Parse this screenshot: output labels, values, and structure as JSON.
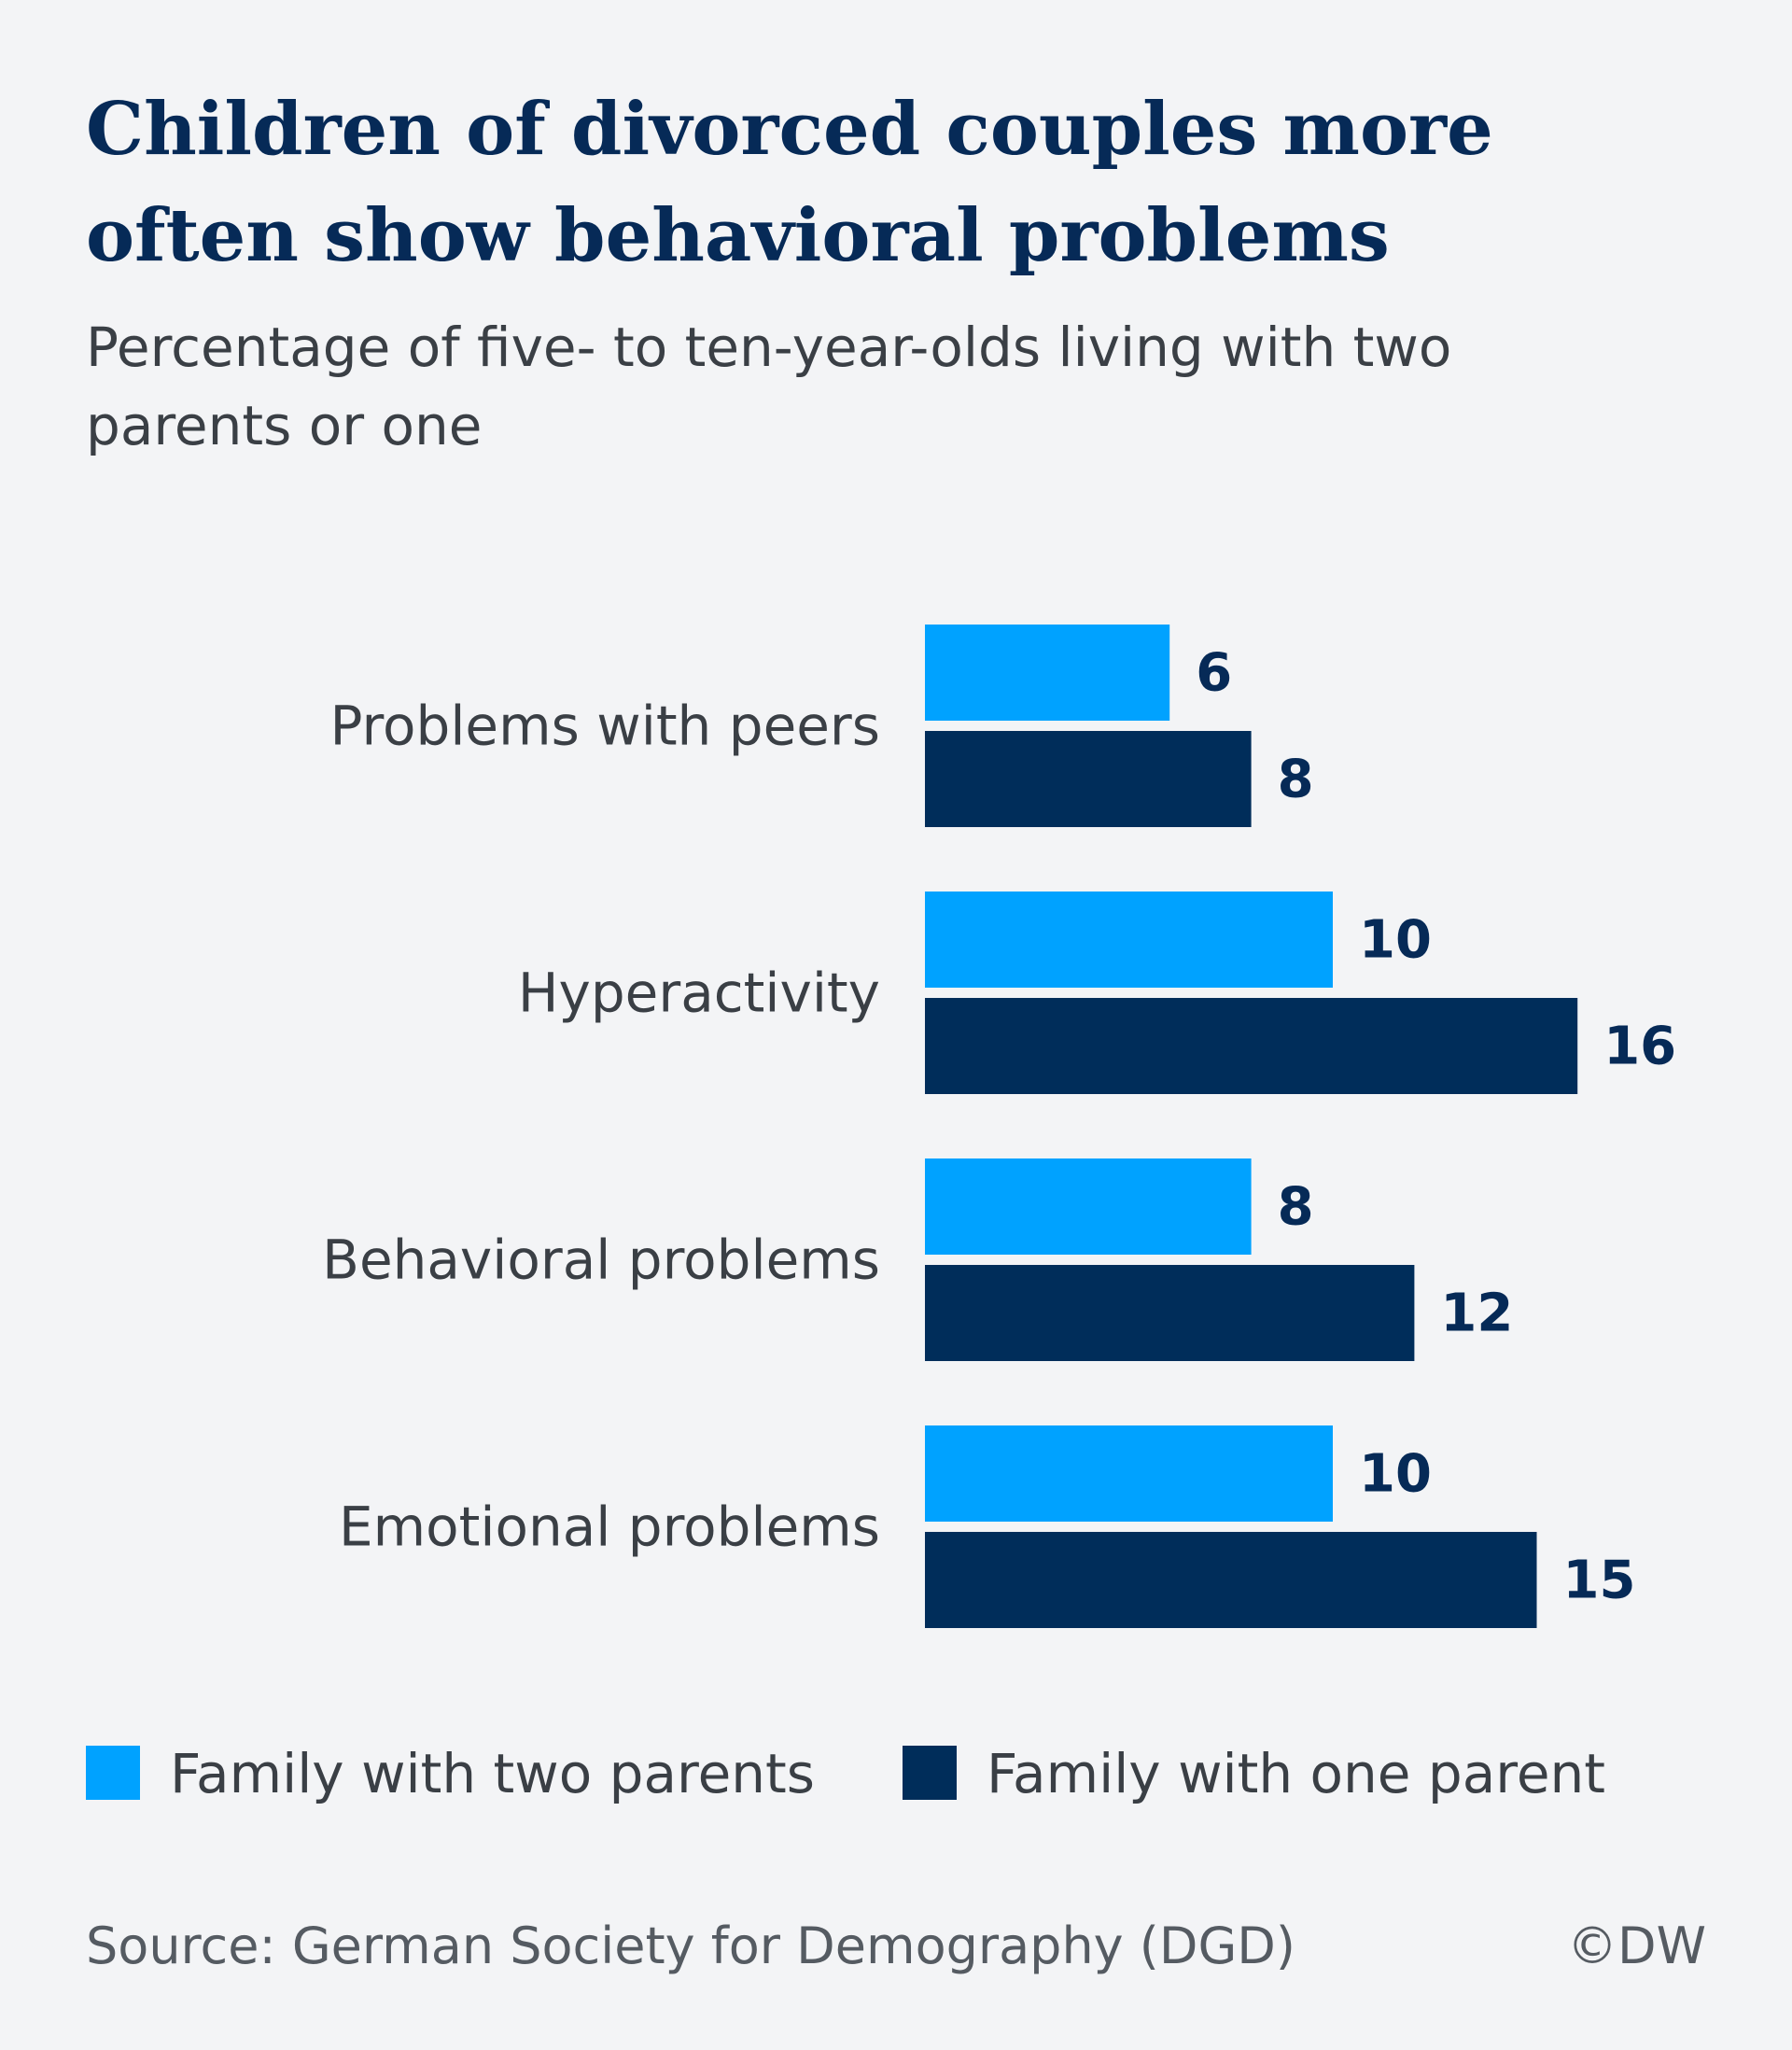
{
  "title": "Children of divorced couples more often show behavioral problems",
  "subtitle": "Percentage of five- to ten-year-olds living with two parents or one",
  "source": "Source: German Society for Demography (DGD)",
  "credit": "©DW",
  "colors": {
    "two_parents": "#00a2ff",
    "one_parent": "#002d5a",
    "label": "#3a3f45",
    "value": "#062a57"
  },
  "chart_data": {
    "type": "bar",
    "orientation": "horizontal",
    "categories": [
      "Problems with peers",
      "Hyperactivity",
      "Behavioral problems",
      "Emotional problems"
    ],
    "series": [
      {
        "name": "Family with two parents",
        "values": [
          6,
          10,
          8,
          10
        ]
      },
      {
        "name": "Family with one parent",
        "values": [
          8,
          16,
          12,
          15
        ]
      }
    ],
    "xlim": [
      0,
      16
    ],
    "grid": false,
    "legend_position": "bottom-left"
  }
}
